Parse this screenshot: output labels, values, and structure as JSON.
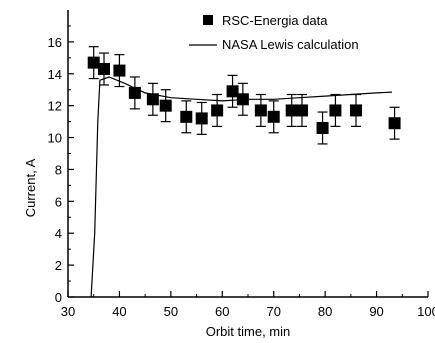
{
  "chart_data": {
    "type": "scatter",
    "title": "",
    "xlabel": "Orbit time, min",
    "ylabel": "Current, A",
    "xlim": [
      30,
      100
    ],
    "ylim": [
      0,
      18
    ],
    "xticks": [
      30,
      40,
      50,
      60,
      70,
      80,
      90,
      100
    ],
    "yticks": [
      0,
      2,
      4,
      6,
      8,
      10,
      12,
      14,
      16
    ],
    "grid": false,
    "legend_position": "top-right",
    "colors": {
      "axis": "#000000",
      "marker": "#000000",
      "line": "#000000"
    },
    "series": [
      {
        "name": "RSC-Energia data",
        "kind": "scatter",
        "marker": "square",
        "points": [
          {
            "x": 35.0,
            "y": 14.7,
            "err": 1.0
          },
          {
            "x": 37.0,
            "y": 14.3,
            "err": 1.0
          },
          {
            "x": 40.0,
            "y": 14.2,
            "err": 1.0
          },
          {
            "x": 43.0,
            "y": 12.8,
            "err": 1.0
          },
          {
            "x": 46.5,
            "y": 12.4,
            "err": 1.0
          },
          {
            "x": 49.0,
            "y": 12.0,
            "err": 1.0
          },
          {
            "x": 53.0,
            "y": 11.3,
            "err": 1.0
          },
          {
            "x": 56.0,
            "y": 11.2,
            "err": 1.0
          },
          {
            "x": 59.0,
            "y": 11.7,
            "err": 1.0
          },
          {
            "x": 62.0,
            "y": 12.9,
            "err": 1.0
          },
          {
            "x": 64.0,
            "y": 12.4,
            "err": 1.0
          },
          {
            "x": 67.5,
            "y": 11.7,
            "err": 1.0
          },
          {
            "x": 70.0,
            "y": 11.3,
            "err": 1.0
          },
          {
            "x": 73.5,
            "y": 11.7,
            "err": 1.0
          },
          {
            "x": 75.5,
            "y": 11.7,
            "err": 1.0
          },
          {
            "x": 79.5,
            "y": 10.6,
            "err": 1.0
          },
          {
            "x": 82.0,
            "y": 11.7,
            "err": 1.0
          },
          {
            "x": 86.0,
            "y": 11.7,
            "err": 1.0
          },
          {
            "x": 93.5,
            "y": 10.9,
            "err": 1.0
          }
        ]
      },
      {
        "name": "NASA Lewis calculation",
        "kind": "line",
        "points": [
          {
            "x": 34.5,
            "y": 0.0
          },
          {
            "x": 35.2,
            "y": 4.0
          },
          {
            "x": 35.8,
            "y": 11.0
          },
          {
            "x": 36.2,
            "y": 13.6
          },
          {
            "x": 38.0,
            "y": 13.8
          },
          {
            "x": 41.0,
            "y": 13.4
          },
          {
            "x": 45.0,
            "y": 12.8
          },
          {
            "x": 50.0,
            "y": 12.5
          },
          {
            "x": 55.0,
            "y": 12.4
          },
          {
            "x": 60.0,
            "y": 12.3
          },
          {
            "x": 65.0,
            "y": 12.4
          },
          {
            "x": 70.0,
            "y": 12.4
          },
          {
            "x": 75.0,
            "y": 12.5
          },
          {
            "x": 80.0,
            "y": 12.6
          },
          {
            "x": 85.0,
            "y": 12.7
          },
          {
            "x": 90.0,
            "y": 12.8
          },
          {
            "x": 93.0,
            "y": 12.85
          }
        ]
      }
    ]
  }
}
